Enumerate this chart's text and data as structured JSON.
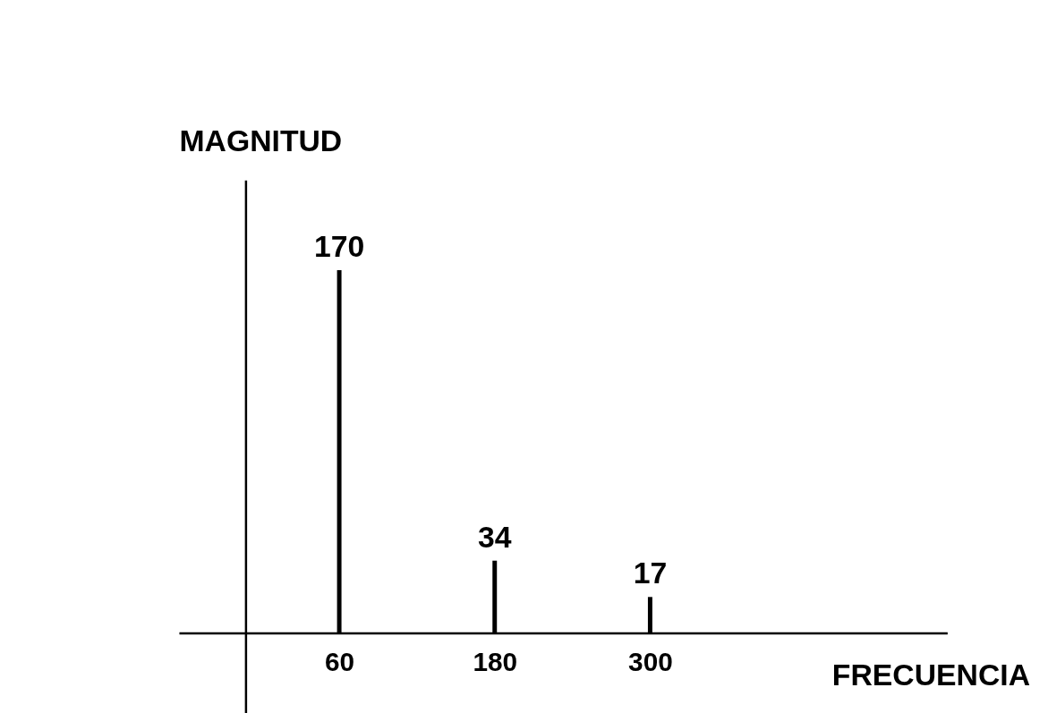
{
  "chart_data": {
    "type": "bar",
    "xlabel": "FRECUENCIA",
    "ylabel": "MAGNITUD",
    "categories": [
      "60",
      "180",
      "300"
    ],
    "values": [
      170,
      34,
      17
    ],
    "color": "#000000",
    "data_labels": true
  }
}
